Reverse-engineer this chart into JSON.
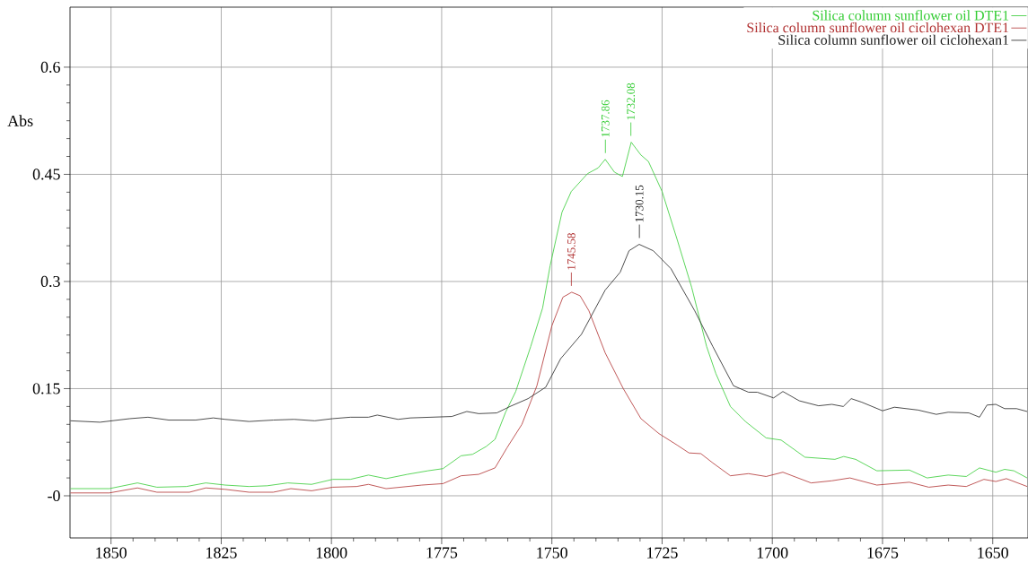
{
  "chart_data": {
    "type": "line",
    "ylabel": "Abs",
    "xlim": [
      1859.3,
      1642
    ],
    "xticks": [
      1850,
      1825,
      1800,
      1775,
      1750,
      1725,
      1700,
      1675,
      1650
    ],
    "ylim": [
      -0.059,
      0.684
    ],
    "yticks": [
      {
        "value": 0,
        "label": "-0"
      },
      0.15,
      0.3,
      0.45,
      0.6
    ],
    "grid": true,
    "legend": "top right",
    "marker": "none",
    "line_style": "solid",
    "series": [
      {
        "name": "Silica column sunflower oil DTE1",
        "color": "#33cc33",
        "x": [
          1859.2,
          1850.4,
          1844.0,
          1839.6,
          1832.9,
          1828.5,
          1824.1,
          1818.7,
          1814.6,
          1809.9,
          1804.5,
          1799.7,
          1795.7,
          1791.6,
          1787.6,
          1782.8,
          1778.1,
          1774.7,
          1770.6,
          1768.0,
          1764.9,
          1762.9,
          1760.5,
          1758.2,
          1754.8,
          1752.1,
          1750.4,
          1747.7,
          1745.6,
          1741.9,
          1739.5,
          1737.9,
          1735.8,
          1734.0,
          1732.0,
          1729.8,
          1728.1,
          1725.0,
          1721.6,
          1718.3,
          1714.9,
          1712.8,
          1709.5,
          1706.1,
          1701.4,
          1698.0,
          1692.6,
          1685.8,
          1683.8,
          1681.1,
          1676.3,
          1668.9,
          1664.9,
          1660.1,
          1656.0,
          1653.0,
          1649.3,
          1647.3,
          1645.2,
          1642.2
        ],
        "values": [
          0.01,
          0.01,
          0.018,
          0.012,
          0.013,
          0.018,
          0.015,
          0.013,
          0.014,
          0.018,
          0.016,
          0.023,
          0.023,
          0.029,
          0.024,
          0.03,
          0.035,
          0.038,
          0.056,
          0.058,
          0.069,
          0.079,
          0.117,
          0.146,
          0.209,
          0.263,
          0.322,
          0.397,
          0.426,
          0.451,
          0.459,
          0.471,
          0.453,
          0.447,
          0.495,
          0.477,
          0.468,
          0.426,
          0.359,
          0.292,
          0.209,
          0.171,
          0.125,
          0.104,
          0.081,
          0.078,
          0.054,
          0.051,
          0.055,
          0.051,
          0.035,
          0.036,
          0.025,
          0.029,
          0.027,
          0.039,
          0.033,
          0.037,
          0.035,
          0.025
        ]
      },
      {
        "name": "Silica column sunflower oil ciclohexan DTE1",
        "color": "#b03030",
        "x": [
          1859.2,
          1850.4,
          1844.0,
          1839.6,
          1832.2,
          1828.5,
          1824.1,
          1818.7,
          1813.2,
          1809.2,
          1804.5,
          1799.7,
          1794.3,
          1791.6,
          1787.6,
          1779.5,
          1774.7,
          1770.6,
          1766.6,
          1762.9,
          1760.2,
          1756.8,
          1753.4,
          1750.0,
          1747.5,
          1745.5,
          1743.6,
          1741.6,
          1737.9,
          1733.8,
          1729.8,
          1725.7,
          1721.6,
          1718.9,
          1716.2,
          1713.5,
          1709.5,
          1705.4,
          1701.4,
          1697.6,
          1691.2,
          1686.5,
          1682.4,
          1676.3,
          1668.9,
          1664.5,
          1660.1,
          1656.0,
          1652.0,
          1649.3,
          1646.9,
          1642.2
        ],
        "values": [
          0.004,
          0.004,
          0.011,
          0.005,
          0.005,
          0.011,
          0.009,
          0.005,
          0.005,
          0.01,
          0.007,
          0.012,
          0.013,
          0.016,
          0.01,
          0.015,
          0.017,
          0.028,
          0.03,
          0.039,
          0.067,
          0.1,
          0.154,
          0.238,
          0.278,
          0.285,
          0.28,
          0.259,
          0.2,
          0.15,
          0.108,
          0.087,
          0.071,
          0.06,
          0.059,
          0.046,
          0.028,
          0.031,
          0.027,
          0.033,
          0.018,
          0.021,
          0.025,
          0.015,
          0.019,
          0.012,
          0.015,
          0.013,
          0.023,
          0.02,
          0.024,
          0.013
        ]
      },
      {
        "name": "Silica column sunflower oil ciclohexan1",
        "color": "#222222",
        "x": [
          1859.2,
          1852.5,
          1845.7,
          1841.6,
          1836.9,
          1830.8,
          1826.8,
          1824.1,
          1818.7,
          1813.2,
          1808.5,
          1803.8,
          1799.7,
          1795.7,
          1791.6,
          1789.6,
          1784.9,
          1782.1,
          1772.7,
          1769.3,
          1766.6,
          1762.5,
          1759.5,
          1755.4,
          1751.4,
          1748.0,
          1743.3,
          1737.9,
          1734.5,
          1732.5,
          1730.2,
          1727.0,
          1723.0,
          1717.6,
          1713.5,
          1708.8,
          1705.4,
          1703.4,
          1699.7,
          1697.6,
          1693.9,
          1689.5,
          1686.5,
          1683.9,
          1682.1,
          1679.7,
          1675.0,
          1672.3,
          1666.9,
          1662.8,
          1660.1,
          1655.4,
          1653.0,
          1651.3,
          1649.3,
          1647.3,
          1644.6,
          1642.2
        ],
        "values": [
          0.105,
          0.103,
          0.108,
          0.11,
          0.106,
          0.106,
          0.109,
          0.107,
          0.104,
          0.106,
          0.107,
          0.105,
          0.108,
          0.11,
          0.11,
          0.113,
          0.107,
          0.109,
          0.111,
          0.118,
          0.115,
          0.116,
          0.125,
          0.136,
          0.152,
          0.192,
          0.226,
          0.288,
          0.313,
          0.343,
          0.352,
          0.343,
          0.318,
          0.259,
          0.209,
          0.154,
          0.145,
          0.145,
          0.137,
          0.146,
          0.133,
          0.126,
          0.128,
          0.125,
          0.136,
          0.131,
          0.119,
          0.124,
          0.12,
          0.114,
          0.117,
          0.116,
          0.11,
          0.127,
          0.128,
          0.122,
          0.122,
          0.118
        ]
      }
    ],
    "annotations": [
      {
        "text": "1737.86",
        "x": 1737.86,
        "y": 0.471
      },
      {
        "text": "1732.08",
        "x": 1732.08,
        "y": 0.495
      },
      {
        "text": "1745.58",
        "x": 1745.58,
        "y": 0.285
      },
      {
        "text": "1730.15",
        "x": 1730.15,
        "y": 0.352
      }
    ]
  }
}
